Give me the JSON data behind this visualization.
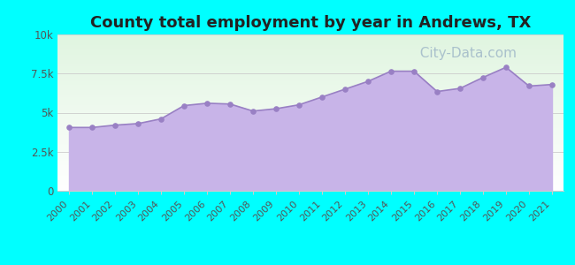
{
  "title": "County total employment by year in Andrews, TX",
  "years": [
    2000,
    2001,
    2002,
    2003,
    2004,
    2005,
    2006,
    2007,
    2008,
    2009,
    2010,
    2011,
    2012,
    2013,
    2014,
    2015,
    2016,
    2017,
    2018,
    2019,
    2020,
    2021
  ],
  "values": [
    4050,
    4050,
    4200,
    4300,
    4600,
    5450,
    5600,
    5550,
    5100,
    5250,
    5500,
    6000,
    6500,
    7000,
    7650,
    7650,
    6350,
    6550,
    7250,
    7900,
    6700,
    6800
  ],
  "fill_color": "#c8b4e8",
  "line_color": "#9980c4",
  "dot_color": "#9980c4",
  "background_color": "#00ffff",
  "ylabel_color": "#555555",
  "title_color": "#222222",
  "ylim": [
    0,
    10000
  ],
  "yticks": [
    0,
    2500,
    5000,
    7500,
    10000
  ],
  "ytick_labels": [
    "0",
    "2.5k",
    "5k",
    "7.5k",
    "10k"
  ],
  "watermark": "  City-Data.com",
  "title_fontsize": 13,
  "tick_fontsize": 8.5,
  "watermark_color": "#a0b8c8",
  "watermark_fontsize": 11
}
